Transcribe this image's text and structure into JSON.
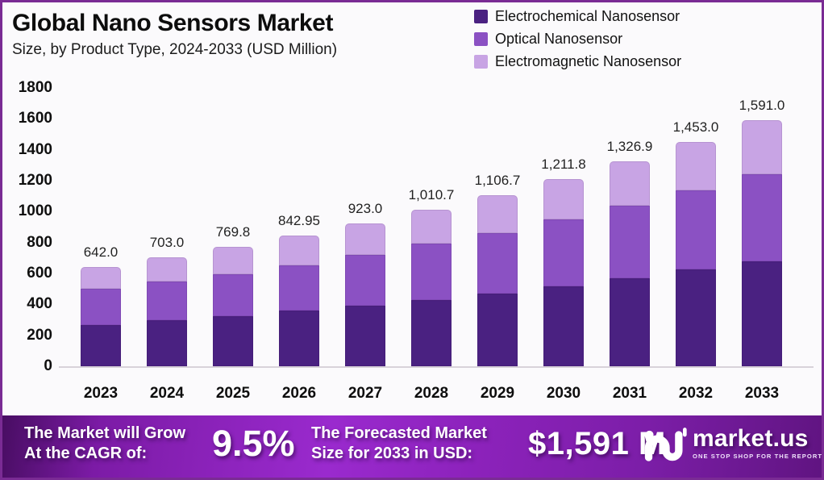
{
  "page": {
    "background": "#fbfafc",
    "border_color": "#7a2b94"
  },
  "header": {
    "title": "Global Nano Sensors Market",
    "subtitle": "Size, by Product Type, 2024-2033 (USD Million)"
  },
  "legend": {
    "items": [
      {
        "label": "Electrochemical Nanosensor",
        "color": "#4a2181"
      },
      {
        "label": "Optical Nanosensor",
        "color": "#8b51c3"
      },
      {
        "label": "Electromagnetic Nanosensor",
        "color": "#c8a4e4"
      }
    ]
  },
  "chart_data": {
    "type": "bar",
    "stacked": true,
    "title": "Global Nano Sensors Market Size, by Product Type, 2024-2033 (USD Million)",
    "xlabel": "",
    "ylabel": "",
    "ylim": [
      0,
      1800
    ],
    "yticks": [
      0,
      200,
      400,
      600,
      800,
      1000,
      1200,
      1400,
      1600,
      1800
    ],
    "grid": false,
    "legend_position": "top-right",
    "categories": [
      "2023",
      "2024",
      "2025",
      "2026",
      "2027",
      "2028",
      "2029",
      "2030",
      "2031",
      "2032",
      "2033"
    ],
    "series": [
      {
        "name": "Electrochemical Nanosensor",
        "color": "#4a2181",
        "values": [
          268,
          295,
          321,
          358,
          389,
          426,
          470,
          517,
          569,
          626,
          680
        ]
      },
      {
        "name": "Optical Nanosensor",
        "color": "#8b51c3",
        "values": [
          232,
          252,
          274,
          294,
          332,
          368,
          391,
          433,
          469,
          511,
          563
        ]
      },
      {
        "name": "Electromagnetic Nanosensor",
        "color": "#c8a4e4",
        "values": [
          142,
          156,
          174.8,
          190.95,
          202,
          216.7,
          245.7,
          261.8,
          288.9,
          316,
          348
        ]
      }
    ],
    "totals": [
      642.0,
      703.0,
      769.8,
      842.95,
      923.0,
      1010.7,
      1106.7,
      1211.8,
      1326.9,
      1453.0,
      1591.0
    ],
    "total_labels": [
      "642.0",
      "703.0",
      "769.8",
      "842.95",
      "923.0",
      "1,010.7",
      "1,106.7",
      "1,211.8",
      "1,326.9",
      "1,453.0",
      "1,591.0"
    ]
  },
  "banner": {
    "cagr_text_line1": "The Market will Grow",
    "cagr_text_line2": "At the CAGR of:",
    "cagr_value": "9.5%",
    "forecast_text_line1": "The Forecasted Market",
    "forecast_text_line2": "Size for 2033 in USD:",
    "forecast_value": "$1,591 M",
    "brand_name": "market.us",
    "brand_tagline": "ONE STOP SHOP FOR THE REPORTS"
  }
}
